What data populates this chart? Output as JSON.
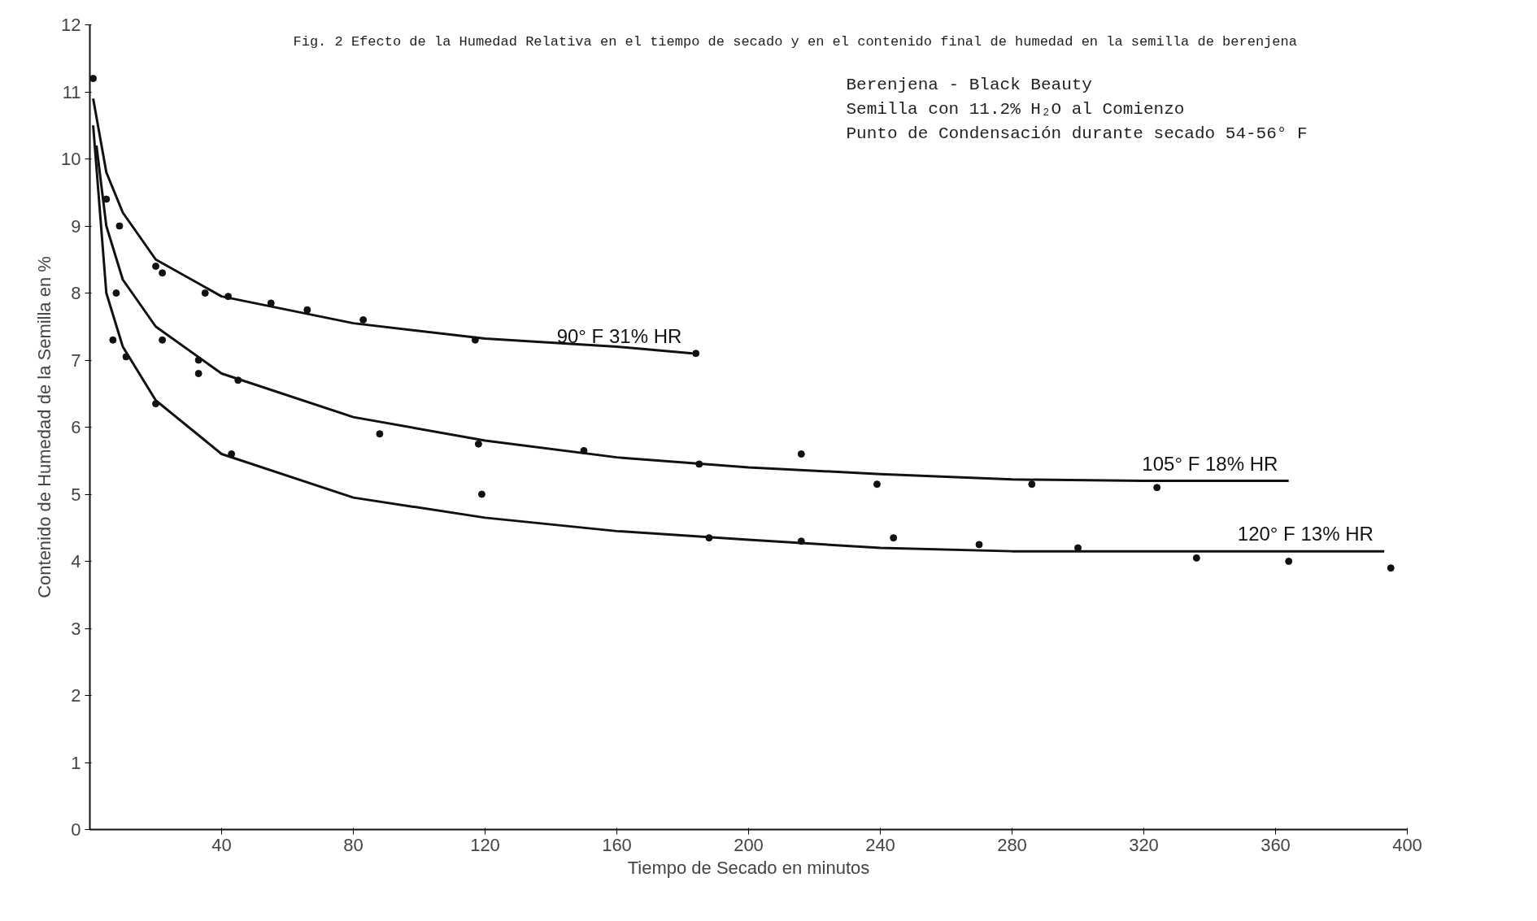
{
  "chart_data": {
    "type": "line",
    "title": "Fig. 2   Efecto de la Humedad Relativa en el tiempo de secado y en el contenido final de humedad en la semilla de berenjena",
    "xlabel": "Tiempo de Secado en minutos",
    "ylabel": "Contenido de Humedad de la Semilla en %",
    "annotations": [
      "Berenjena - Black Beauty",
      "Semilla con 11.2% H₂O al Comienzo",
      "Punto de Condensación durante secado  54-56° F"
    ],
    "xlim": [
      0,
      400
    ],
    "ylim": [
      0,
      12
    ],
    "xticks": [
      40,
      80,
      120,
      160,
      200,
      240,
      280,
      320,
      360,
      400
    ],
    "yticks": [
      0,
      1,
      2,
      3,
      4,
      5,
      6,
      7,
      8,
      9,
      10,
      11,
      12
    ],
    "grid": false,
    "marker": "none",
    "line_style": "solid",
    "series": [
      {
        "name": "90° F   31% HR",
        "color": "#111111",
        "x": [
          1,
          5,
          10,
          20,
          40,
          80,
          120,
          160,
          183
        ],
        "values": [
          10.9,
          9.8,
          9.2,
          8.5,
          7.95,
          7.55,
          7.32,
          7.2,
          7.1
        ]
      },
      {
        "name": "105° F   18% HR",
        "color": "#111111",
        "x": [
          2,
          5,
          10,
          20,
          40,
          80,
          120,
          160,
          200,
          240,
          280,
          320,
          364
        ],
        "values": [
          10.2,
          9.0,
          8.2,
          7.5,
          6.8,
          6.15,
          5.8,
          5.55,
          5.4,
          5.3,
          5.22,
          5.2,
          5.2
        ]
      },
      {
        "name": "120° F   13% HR",
        "color": "#111111",
        "x": [
          1,
          5,
          10,
          20,
          40,
          80,
          120,
          160,
          200,
          240,
          280,
          320,
          393
        ],
        "values": [
          10.5,
          8.0,
          7.2,
          6.4,
          5.6,
          4.95,
          4.65,
          4.45,
          4.32,
          4.2,
          4.15,
          4.15,
          4.15
        ]
      },
      {
        "type": "scatter",
        "marker": "circle",
        "color": "#111111",
        "x": [
          1,
          5,
          9,
          20,
          22,
          35,
          42,
          55,
          66,
          83,
          117,
          184
        ],
        "values": [
          11.2,
          9.4,
          9.0,
          8.4,
          8.3,
          8.0,
          7.95,
          7.85,
          7.75,
          7.6,
          7.3,
          7.1
        ]
      },
      {
        "type": "scatter",
        "marker": "circle",
        "color": "#111111",
        "x": [
          8,
          22,
          33,
          33,
          45,
          88,
          118,
          150,
          185,
          216,
          239,
          286,
          324
        ],
        "values": [
          8.0,
          7.3,
          7.0,
          6.8,
          6.7,
          5.9,
          5.75,
          5.65,
          5.45,
          5.6,
          5.15,
          5.15,
          5.1
        ]
      },
      {
        "type": "scatter",
        "marker": "circle",
        "color": "#111111",
        "x": [
          7,
          11,
          20,
          43,
          119,
          188,
          216,
          244,
          270,
          300,
          336,
          364,
          395
        ],
        "values": [
          7.3,
          7.05,
          6.35,
          5.6,
          5.0,
          4.35,
          4.3,
          4.35,
          4.25,
          4.2,
          4.05,
          4.0,
          3.9
        ]
      }
    ]
  }
}
